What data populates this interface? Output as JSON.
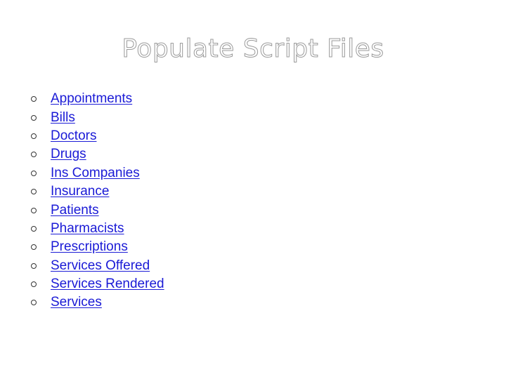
{
  "slide": {
    "title": "Populate Script Files",
    "links": [
      "Appointments",
      "Bills",
      "Doctors",
      "Drugs",
      "Ins Companies",
      "Insurance",
      "Patients",
      "Pharmacists",
      "Prescriptions",
      "Services Offered",
      "Services Rendered",
      "Services"
    ]
  },
  "colors": {
    "link": "#1a1ad6",
    "title_outline": "#9a9a9a",
    "bullet": "#333333",
    "background": "#ffffff"
  },
  "icons": {
    "bullet": "hollow-circle-bullet-icon"
  }
}
